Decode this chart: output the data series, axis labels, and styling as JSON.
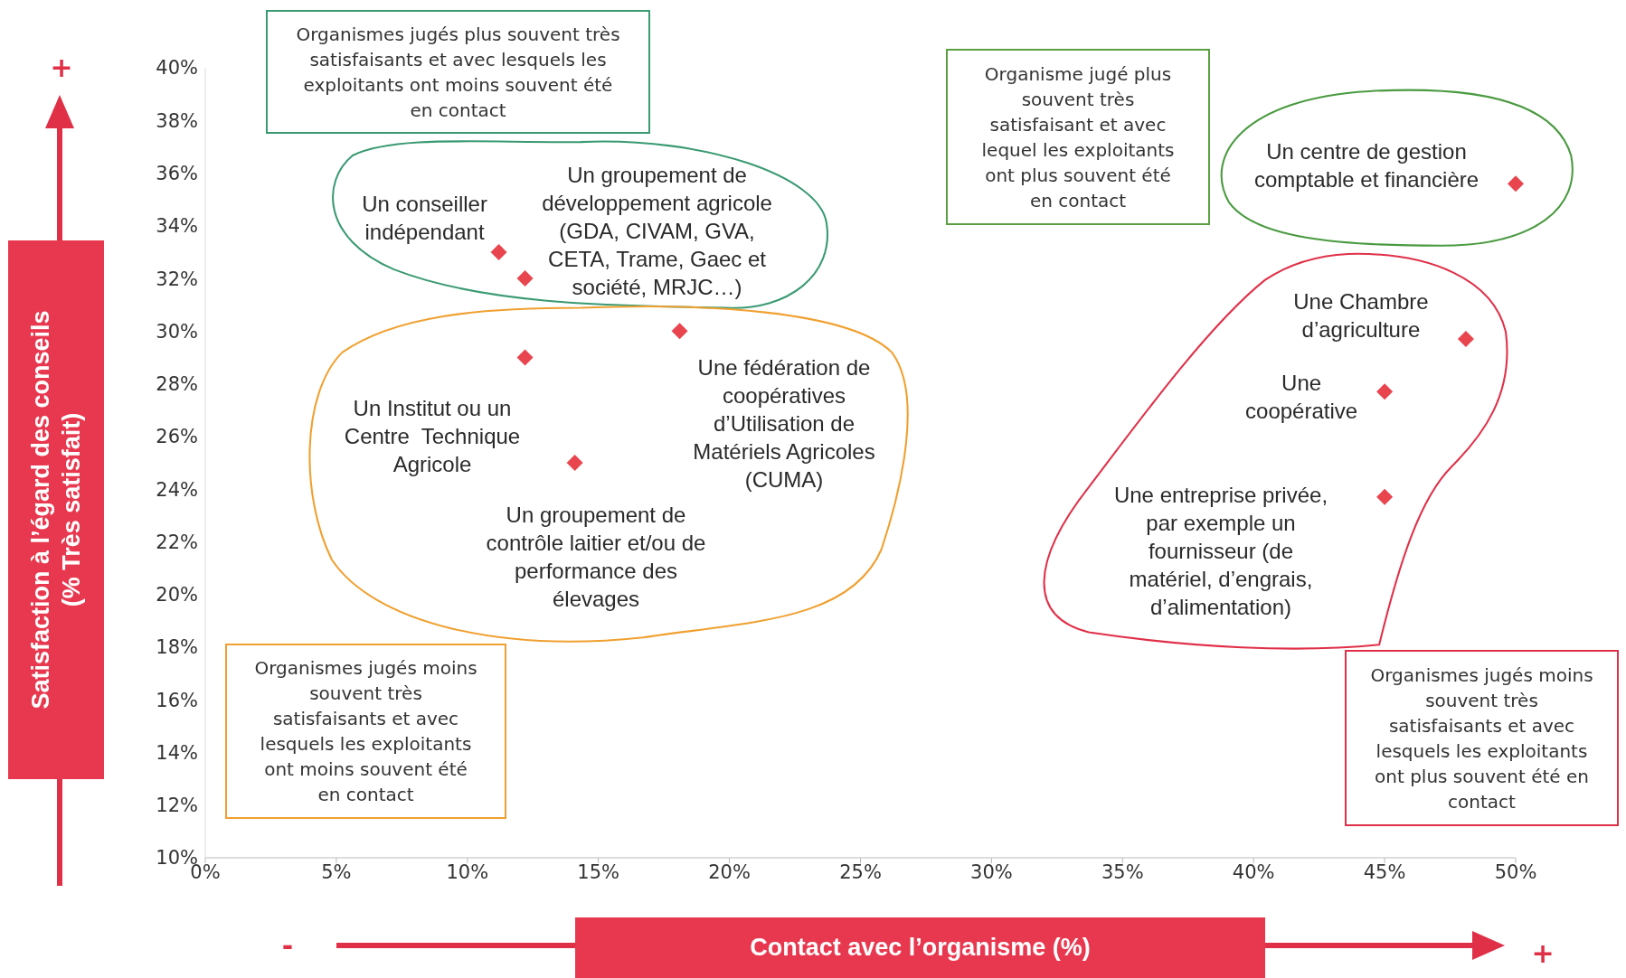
{
  "chart_data": {
    "type": "scatter",
    "xlabel": "Contact avec l’organisme (%)",
    "ylabel": "Satisfaction à l’égard des conseils\n(% Très satisfait)",
    "marker": "diamond",
    "x": [
      11.2,
      12.2,
      12.2,
      14.1,
      18.1,
      50,
      48.1,
      45,
      45
    ],
    "series": [
      {
        "color": "#e8454f",
        "values": [
          33,
          32,
          29,
          25,
          30,
          35.6,
          29.7,
          27.7,
          23.7
        ]
      }
    ],
    "xlim": [
      0,
      50
    ],
    "ylim": [
      10,
      40
    ],
    "xticks": [
      {
        "value": 0,
        "label": "0%"
      },
      {
        "value": 5,
        "label": "5%"
      },
      {
        "value": 10,
        "label": "10%"
      },
      {
        "value": 15,
        "label": "15%"
      },
      {
        "value": 20,
        "label": "20%"
      },
      {
        "value": 25,
        "label": "25%"
      },
      {
        "value": 30,
        "label": "30%"
      },
      {
        "value": 35,
        "label": "35%"
      },
      {
        "value": 40,
        "label": "40%"
      },
      {
        "value": 45,
        "label": "45%"
      },
      {
        "value": 50,
        "label": "50%"
      }
    ],
    "yticks": [
      {
        "value": 10,
        "label": "10%"
      },
      {
        "value": 12,
        "label": "12%"
      },
      {
        "value": 14,
        "label": "14%"
      },
      {
        "value": 16,
        "label": "16%"
      },
      {
        "value": 18,
        "label": "18%"
      },
      {
        "value": 20,
        "label": "20%"
      },
      {
        "value": 22,
        "label": "22%"
      },
      {
        "value": 24,
        "label": "24%"
      },
      {
        "value": 26,
        "label": "26%"
      },
      {
        "value": 28,
        "label": "28%"
      },
      {
        "value": 30,
        "label": "30%"
      },
      {
        "value": 32,
        "label": "32%"
      },
      {
        "value": 34,
        "label": "34%"
      },
      {
        "value": 36,
        "label": "36%"
      },
      {
        "value": 38,
        "label": "38%"
      },
      {
        "value": 40,
        "label": "40%"
      }
    ],
    "annotations": [
      {
        "text": "Un conseiller\nindépendant",
        "x": 11.2,
        "y": 33
      },
      {
        "text": "Un groupement de\ndéveloppement agricole\n(GDA, CIVAM, GVA,\nCETA, Trame, Gaec et\nsociété, MRJC…)",
        "x": 12.2,
        "y": 32
      },
      "Un Institut ou un\nCentre  Technique\nAgricole",
      "Un groupement de\ncontrôle laitier et/ou de\nperformance des\nélevages",
      "Une fédération de\ncoopératives\nd’Utilisation de\nMatériels Agricoles\n(CUMA)",
      {
        "text": "Un centre de gestion\ncomptable et financière",
        "x": 50,
        "y": 35.6
      },
      {
        "text": "Une Chambre\nd’agriculture",
        "x": 48.1,
        "y": 29.7
      },
      {
        "text": "Une\ncoopérative",
        "x": 45,
        "y": 27.7
      },
      "Une entreprise privée,\npar exemple un\nfournisseur (de\nmatériel, d’engrais,\nd’alimentation)",
      "Organismes jugés plus souvent très\nsatisfaisants et avec lesquels les\nexploitants ont moins souvent été\nen contact",
      "Organisme jugé plus\nsouvent très\nsatisfaisant et avec\nlequel les exploitants\nont plus souvent été\nen contact",
      "Organismes jugés moins\nsouvent très\nsatisfaisants et avec\nlesquels les exploitants\nont moins souvent été\nen contact",
      "Organismes jugés moins\nsouvent très\nsatisfaisants et avec\nlesquels les exploitants\nont plus souvent été en\ncontact",
      "+",
      "-",
      "+"
    ]
  }
}
